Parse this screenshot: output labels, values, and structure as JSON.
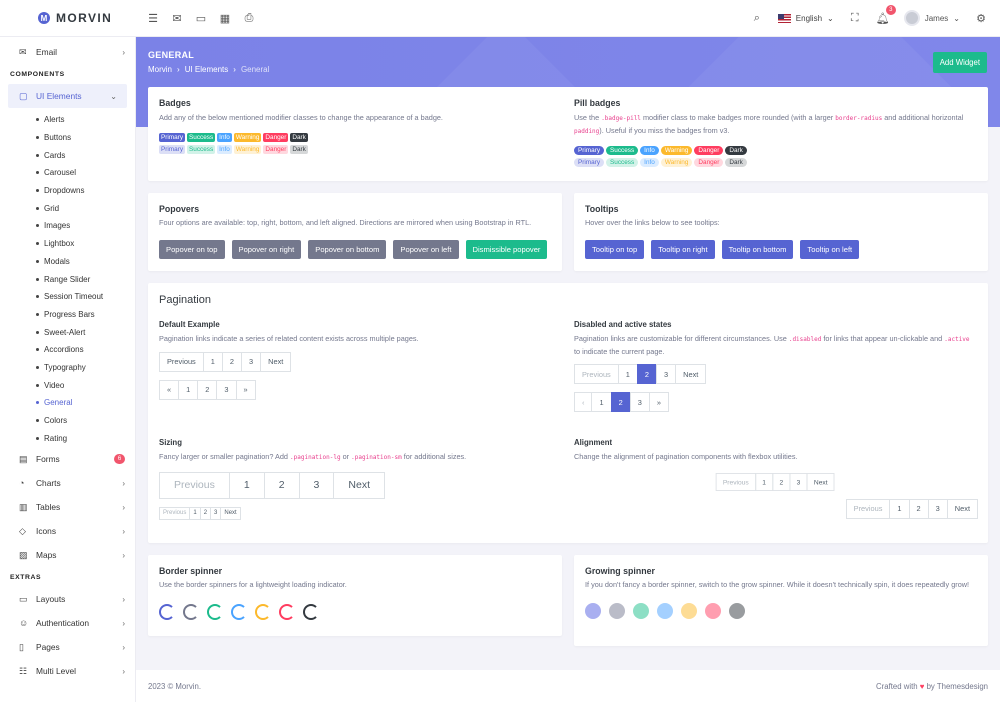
{
  "app": {
    "name": "MORVIN",
    "logo_letter": "M"
  },
  "topbar": {
    "language": "English",
    "user": "James",
    "notification_count": "3",
    "icons": [
      "menu-icon",
      "mail-icon",
      "chat-icon",
      "calendar-icon",
      "print-icon"
    ]
  },
  "sidebar": {
    "email": "Email",
    "components_title": "COMPONENTS",
    "ui_elements": "UI Elements",
    "sub": [
      "Alerts",
      "Buttons",
      "Cards",
      "Carousel",
      "Dropdowns",
      "Grid",
      "Images",
      "Lightbox",
      "Modals",
      "Range Slider",
      "Session Timeout",
      "Progress Bars",
      "Sweet-Alert",
      "Accordions",
      "Typography",
      "Video",
      "General",
      "Colors",
      "Rating"
    ],
    "forms": "Forms",
    "forms_badge": "6",
    "charts": "Charts",
    "tables": "Tables",
    "icons": "Icons",
    "maps": "Maps",
    "extras_title": "EXTRAS",
    "layouts": "Layouts",
    "authentication": "Authentication",
    "pages": "Pages",
    "multi_level": "Multi Level"
  },
  "banner": {
    "title": "GENERAL",
    "crumb1": "Morvin",
    "crumb2": "UI Elements",
    "crumb3": "General",
    "add_widget": "Add Widget"
  },
  "badges": {
    "title": "Badges",
    "desc": "Add any of the below mentioned modifier classes to change the appearance of a badge.",
    "labels": [
      "Primary",
      "Success",
      "Info",
      "Warning",
      "Danger",
      "Dark"
    ]
  },
  "pill": {
    "title": "Pill badges",
    "desc_a": "Use the ",
    "code1": ".badge-pill",
    "desc_b": " modifier class to make badges more rounded (with a larger ",
    "code2": "border-radius",
    "desc_c": " and additional horizontal ",
    "code3": "padding",
    "desc_d": "). Useful if you miss the badges from v3."
  },
  "popovers": {
    "title": "Popovers",
    "desc": "Four options are available: top, right, bottom, and left aligned. Directions are mirrored when using Bootstrap in RTL.",
    "buttons": [
      "Popover on top",
      "Popover on right",
      "Popover on bottom",
      "Popover on left",
      "Dismissible popover"
    ]
  },
  "tooltips": {
    "title": "Tooltips",
    "desc": "Hover over the links below to see tooltips:",
    "buttons": [
      "Tooltip on top",
      "Tooltip on right",
      "Tooltip on bottom",
      "Tooltip on left"
    ]
  },
  "pagination": {
    "title": "Pagination",
    "default_title": "Default Example",
    "default_desc": "Pagination links indicate a series of related content exists across multiple pages.",
    "disabled_title": "Disabled and active states",
    "disabled_desc_a": "Pagination links are customizable for different circumstances. Use ",
    "disabled_code1": ".disabled",
    "disabled_desc_b": " for links that appear un-clickable and ",
    "disabled_code2": ".active",
    "disabled_desc_c": " to indicate the current page.",
    "sizing_title": "Sizing",
    "sizing_desc_a": "Fancy larger or smaller pagination? Add ",
    "sizing_code1": ".pagination-lg",
    "sizing_desc_b": " or ",
    "sizing_code2": ".pagination-sm",
    "sizing_desc_c": " for additional sizes.",
    "align_title": "Alignment",
    "align_desc": "Change the alignment of pagination components with flexbox utilities.",
    "prev": "Previous",
    "next": "Next",
    "p1": "1",
    "p2": "2",
    "p3": "3",
    "laquo": "«",
    "raquo": "»",
    "lsaquo": "‹"
  },
  "border_spinner": {
    "title": "Border spinner",
    "desc": "Use the border spinners for a lightweight loading indicator.",
    "colors": [
      "#5664d2",
      "#74788d",
      "#1cbb8c",
      "#4aa3ff",
      "#fcb92c",
      "#ff3d60",
      "#343a40"
    ]
  },
  "grow_spinner": {
    "title": "Growing spinner",
    "desc": "If you don't fancy a border spinner, switch to the grow spinner. While it doesn't technically spin, it does repeatedly grow!",
    "colors": [
      "#a9aff0",
      "#babcc8",
      "#8ddfc5",
      "#a4d0ff",
      "#fddc95",
      "#ff9eb0",
      "#999c9f"
    ]
  },
  "footer": {
    "left": "2023 © Morvin.",
    "right_a": "Crafted with",
    "right_b": "by Themesdesign"
  }
}
